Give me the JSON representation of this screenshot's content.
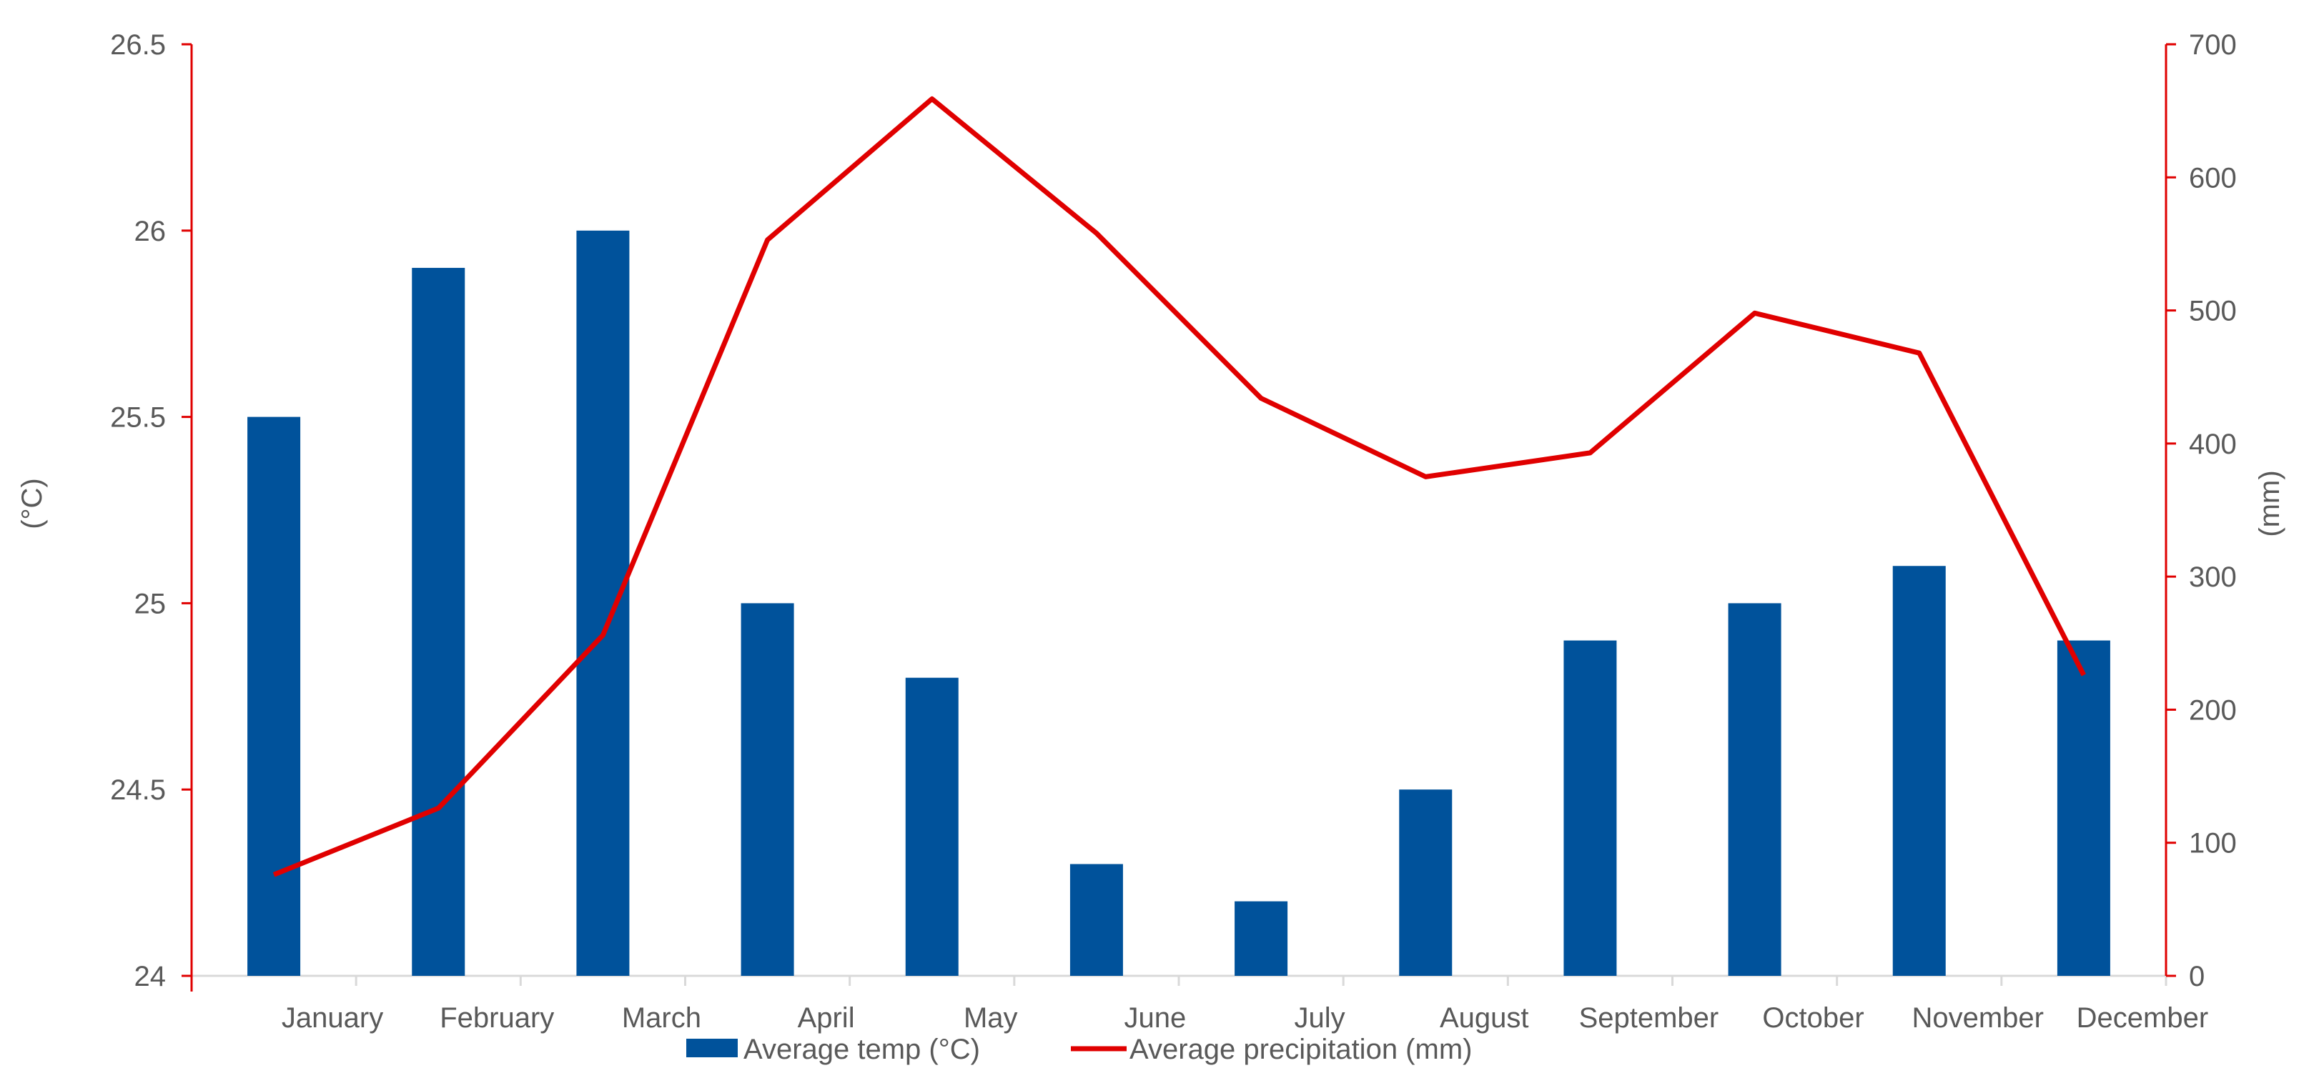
{
  "chart_data": {
    "type": "bar",
    "categories": [
      "January",
      "February",
      "March",
      "April",
      "May",
      "June",
      "July",
      "August",
      "September",
      "October",
      "November",
      "December"
    ],
    "series": [
      {
        "name": "Average temp (°C)",
        "type": "bar",
        "axis": "left",
        "values": [
          25.5,
          25.9,
          26.0,
          25.0,
          24.8,
          24.3,
          24.2,
          24.5,
          24.9,
          25.0,
          25.1,
          24.9
        ]
      },
      {
        "name": "Average precipitation (mm)",
        "type": "line",
        "axis": "right",
        "values": [
          76,
          126,
          256,
          553,
          659,
          558,
          434,
          375,
          393,
          498,
          468,
          226
        ]
      }
    ],
    "left_axis": {
      "label": "(°C)",
      "ylim": [
        24,
        26.5
      ],
      "ticks": [
        "24",
        "24.5",
        "25",
        "25.5",
        "26",
        "26.5"
      ]
    },
    "right_axis": {
      "label": "(mm)",
      "ylim": [
        0,
        700
      ],
      "ticks": [
        "0",
        "100",
        "200",
        "300",
        "400",
        "500",
        "600",
        "700"
      ]
    },
    "legend": "bottom",
    "grid": false,
    "colors": {
      "bar": "#00529B",
      "line": "#E00000",
      "axis": "#E00000",
      "baseline": "#D9D9D9",
      "text": "#595959"
    }
  }
}
